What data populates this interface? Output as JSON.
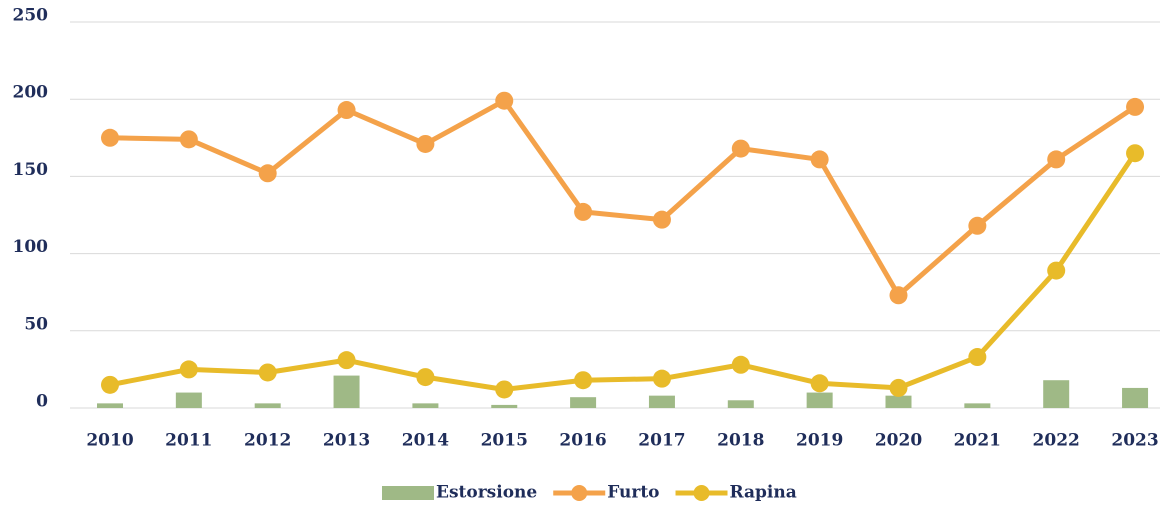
{
  "chart_data": {
    "type": "line",
    "categories": [
      "2010",
      "2011",
      "2012",
      "2013",
      "2014",
      "2015",
      "2016",
      "2017",
      "2018",
      "2019",
      "2020",
      "2021",
      "2022",
      "2023"
    ],
    "series": [
      {
        "name": "Estorsione",
        "type": "bar",
        "color": "#9fb986",
        "values": [
          3,
          10,
          3,
          21,
          3,
          2,
          7,
          8,
          5,
          10,
          8,
          3,
          18,
          13
        ]
      },
      {
        "name": "Furto",
        "type": "line",
        "color": "#f4a24a",
        "values": [
          175,
          174,
          152,
          193,
          171,
          199,
          127,
          122,
          168,
          161,
          73,
          118,
          161,
          195
        ]
      },
      {
        "name": "Rapina",
        "type": "line",
        "color": "#e8bb2a",
        "values": [
          15,
          25,
          23,
          31,
          20,
          12,
          18,
          19,
          28,
          16,
          13,
          33,
          89,
          165
        ]
      }
    ],
    "ylim": [
      0,
      250
    ],
    "yticks": [
      0,
      50,
      100,
      150,
      200,
      250
    ],
    "grid": true,
    "legend": "bottom"
  }
}
